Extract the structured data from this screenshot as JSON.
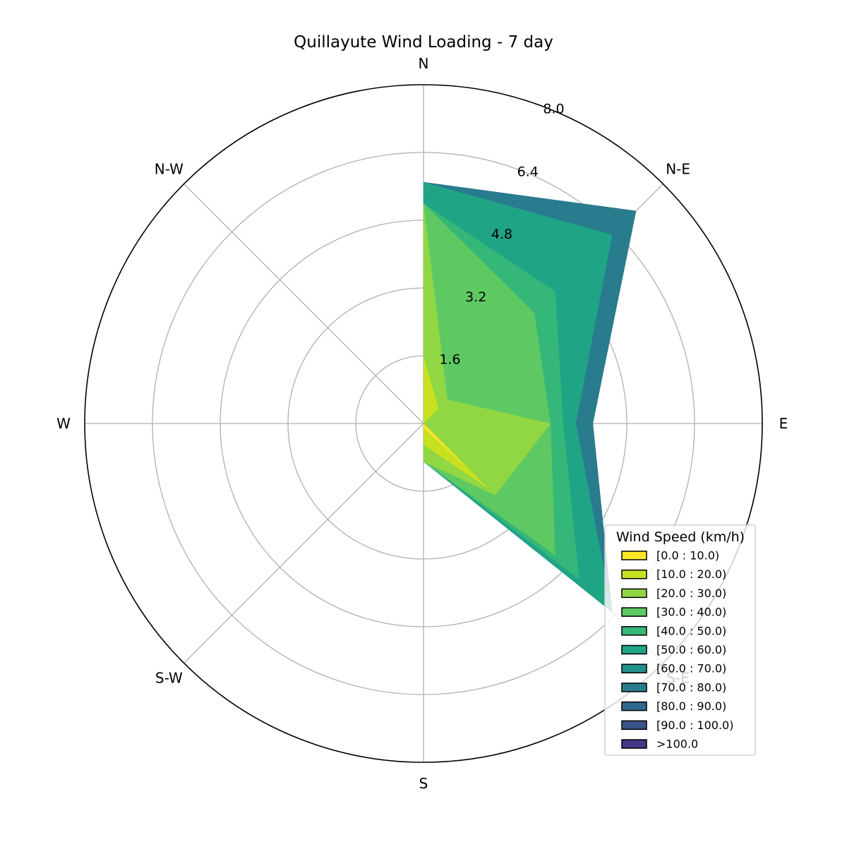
{
  "chart_data": {
    "type": "area",
    "subtype": "windrose",
    "title": "Quillayute Wind Loading - 7 day",
    "directions": [
      "N",
      "N-E",
      "E",
      "S-E",
      "S",
      "S-W",
      "W",
      "N-W"
    ],
    "radial_ticks": [
      "1.6",
      "3.2",
      "4.8",
      "6.4",
      "8.0"
    ],
    "rmax": 8.0,
    "stacking": "cumulative",
    "legend": {
      "title": "Wind Speed (km/h)",
      "placement": "lower-right",
      "entries": [
        "[0.0 : 10.0)",
        "[10.0 : 20.0)",
        "[20.0 : 30.0)",
        "[30.0 : 40.0)",
        "[40.0 : 50.0)",
        "[50.0 : 60.0)",
        "[60.0 : 70.0)",
        "[70.0 : 80.0)",
        "[80.0 : 90.0)",
        "[90.0 : 100.0)",
        ">100.0"
      ]
    },
    "series": [
      {
        "name": "[0.0 : 10.0)",
        "color": "#fde725",
        "values": [
          0.0,
          0.0,
          0.0,
          1.6,
          0.1,
          0.0,
          0.0,
          0.0
        ]
      },
      {
        "name": "[10.0 : 20.0)",
        "color": "#c8e020",
        "values": [
          1.6,
          0.5,
          0.0,
          0.6,
          0.4,
          0.0,
          0.0,
          0.0
        ]
      },
      {
        "name": "[20.0 : 30.0)",
        "color": "#90d743",
        "values": [
          3.6,
          0.3,
          3.0,
          0.2,
          0.4,
          0.0,
          0.0,
          0.0
        ]
      },
      {
        "name": "[30.0 : 40.0)",
        "color": "#5ec962",
        "values": [
          0.0,
          2.9,
          0.0,
          2.0,
          0.0,
          0.0,
          0.0,
          0.0
        ]
      },
      {
        "name": "[40.0 : 50.0)",
        "color": "#35b779",
        "values": [
          0.0,
          0.7,
          0.3,
          0.8,
          0.0,
          0.0,
          0.0,
          0.0
        ]
      },
      {
        "name": "[50.0 : 60.0)",
        "color": "#20a486",
        "values": [
          0.5,
          1.9,
          0.3,
          1.1,
          0.0,
          0.0,
          0.0,
          0.0
        ]
      },
      {
        "name": "[60.0 : 70.0)",
        "color": "#21918c",
        "values": [
          0.0,
          0.0,
          0.0,
          0.0,
          0.0,
          0.0,
          0.0,
          0.0
        ]
      },
      {
        "name": "[70.0 : 80.0)",
        "color": "#287c8e",
        "values": [
          0.0,
          0.8,
          0.4,
          0.0,
          0.0,
          0.0,
          0.0,
          0.0
        ]
      },
      {
        "name": "[80.0 : 90.0)",
        "color": "#31688e",
        "values": [
          0.0,
          0.0,
          0.0,
          0.0,
          0.0,
          0.0,
          0.0,
          0.0
        ]
      },
      {
        "name": "[90.0 : 100.0)",
        "color": "#3b528b",
        "values": [
          0.0,
          0.0,
          0.0,
          0.0,
          0.0,
          0.0,
          0.0,
          0.0
        ]
      },
      {
        "name": ">100.0",
        "color": "#443983",
        "values": [
          0.0,
          0.0,
          0.0,
          0.0,
          0.0,
          0.0,
          0.0,
          0.0
        ]
      }
    ],
    "grid": true
  }
}
